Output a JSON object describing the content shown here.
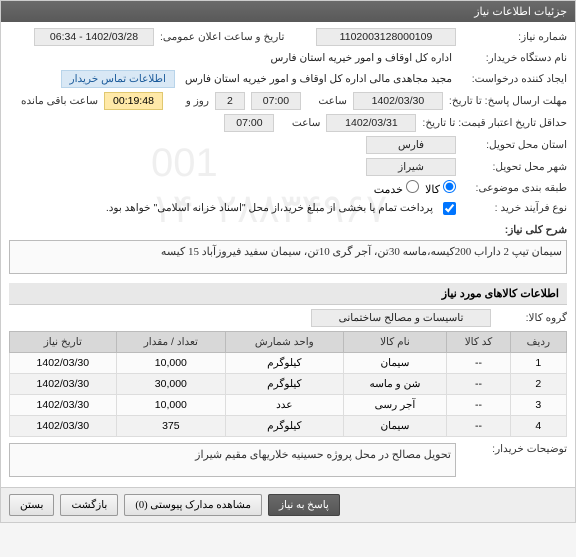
{
  "header": {
    "title": "جزئیات اطلاعات نیاز"
  },
  "fields": {
    "need_no_lbl": "شماره نیاز:",
    "need_no": "1102003128000109",
    "announce_lbl": "تاریخ و ساعت اعلان عمومی:",
    "announce": "1402/03/28 - 06:34",
    "org_lbl": "نام دستگاه خریدار:",
    "org": "اداره کل اوقاف و امور خیریه استان فارس",
    "creator_lbl": "ایجاد کننده درخواست:",
    "creator": "مجید مجاهدی مالی اداره کل اوقاف و امور خیریه استان فارس",
    "contact_link": "اطلاعات تماس خریدار",
    "deadline_lbl": "مهلت ارسال پاسخ: تا تاریخ:",
    "deadline_date": "1402/03/30",
    "time_lbl": "ساعت",
    "deadline_time": "07:00",
    "days_left": "2",
    "days_lbl": "روز و",
    "countdown": "00:19:48",
    "remain_lbl": "ساعت باقی مانده",
    "validity_lbl": "حداقل تاریخ اعتبار قیمت: تا تاریخ:",
    "validity_date": "1402/03/31",
    "validity_time": "07:00",
    "province_lbl": "استان محل تحویل:",
    "province": "فارس",
    "city_lbl": "شهر محل تحویل:",
    "city": "شیراز",
    "category_lbl": "طبقه بندی موضوعی:",
    "radio_goods": "کالا",
    "radio_service": "خدمت",
    "process_lbl": "نوع فرآیند خرید :",
    "process_note": "پرداخت تمام یا بخشی از مبلغ خرید،از محل \"اسناد خزانه اسلامی\" خواهد بود.",
    "summary_lbl": "شرح کلی نیاز:",
    "summary": "سیمان تیپ 2 داراب 200کیسه،ماسه 30تن، آجر گری 10تن، سیمان سفید فیروزآباد 15 کیسه",
    "buyer_note_lbl": "توضیحات خریدار:",
    "buyer_note": "تحویل مصالح در محل پروژه حسینیه خلاریهای مقیم شیراز"
  },
  "items_section": {
    "title": "اطلاعات کالاهای مورد نیاز",
    "group_lbl": "گروه کالا:",
    "group": "تاسیسات و مصالح ساختمانی",
    "columns": [
      "ردیف",
      "کد کالا",
      "نام کالا",
      "واحد شمارش",
      "تعداد / مقدار",
      "تاریخ نیاز"
    ],
    "rows": [
      [
        "1",
        "--",
        "سیمان",
        "کیلوگرم",
        "10,000",
        "1402/03/30"
      ],
      [
        "2",
        "--",
        "شن و ماسه",
        "کیلوگرم",
        "30,000",
        "1402/03/30"
      ],
      [
        "3",
        "--",
        "آجر رسی",
        "عدد",
        "10,000",
        "1402/03/30"
      ],
      [
        "4",
        "--",
        "سیمان",
        "کیلوگرم",
        "375",
        "1402/03/30"
      ]
    ]
  },
  "footer": {
    "respond": "پاسخ به نیاز",
    "attachments": "مشاهده مدارک پیوستی (0)",
    "back": "بازگشت",
    "close": "بستن"
  }
}
